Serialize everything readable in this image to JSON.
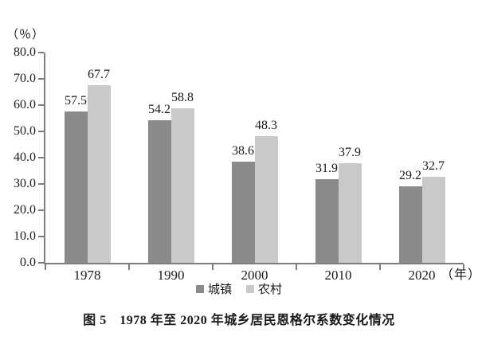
{
  "caption": "图 5　1978 年至 2020 年城乡居民恩格尔系数变化情况",
  "chart_data": {
    "type": "bar",
    "title": "图 5　1978 年至 2020 年城乡居民恩格尔系数变化情况",
    "ylabel": "（％）",
    "xlabel_suffix": "（年）",
    "categories": [
      "1978",
      "1990",
      "2000",
      "2010",
      "2020"
    ],
    "series": [
      {
        "key": "urban",
        "name": "城镇",
        "color": "#8a8a8a",
        "values": [
          57.5,
          54.2,
          38.6,
          31.9,
          29.2
        ]
      },
      {
        "key": "rural",
        "name": "农村",
        "color": "#c9c9c9",
        "values": [
          67.7,
          58.8,
          48.3,
          37.9,
          32.7
        ]
      }
    ],
    "ylim": [
      0,
      80
    ],
    "ytick_step": 10,
    "ytick_labels": [
      "80.0",
      "70.0",
      "60.0",
      "50.0",
      "40.0",
      "30.0",
      "20.0",
      "10.0",
      "0.0"
    ],
    "grid": false,
    "legend_position": "bottom",
    "axis_color": "#7e7e7e"
  }
}
